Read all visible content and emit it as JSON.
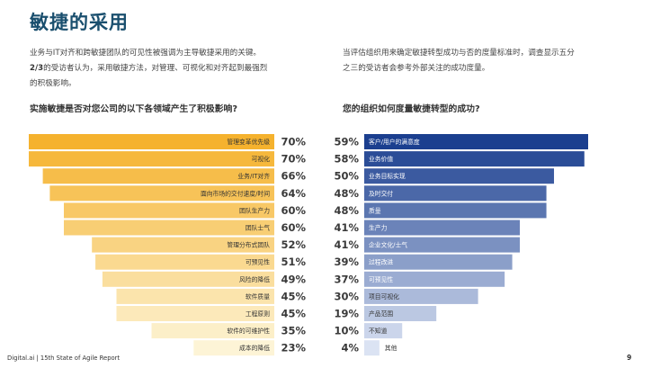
{
  "header": {
    "title": "敏捷的采用"
  },
  "intro": {
    "left_line1": "业务与IT对齐和跨敏捷团队的可见性被强调为主导敏捷采用的关键。",
    "left_highlight": "2/3",
    "left_line2": "的受访者认为，采用敏捷方法，对管理、可视化和对齐起到最强烈",
    "left_line3": "的积极影响。",
    "right_line1": "当评估组织用来确定敏捷转型成功与否的度量标准时，调查显示五分",
    "right_line2": "之三的受访者会参考外部关注的成功度量。"
  },
  "footer": {
    "source": "Digital.ai | 15th State of Agile Report",
    "page": "9"
  },
  "colors": {
    "left_dark": "#f5b22e",
    "left_light": "#fdf4d6",
    "right_dark": "#1b3f8f",
    "right_light": "#dbe3f3"
  },
  "chart_data": [
    {
      "type": "bar",
      "orientation": "horizontal",
      "title": "实施敏捷是否对您公司的以下各领域产生了积极影响?",
      "categories": [
        "管理变革优先级",
        "可视化",
        "业务/IT对齐",
        "面向市场的交付速度/时间",
        "团队生产力",
        "团队士气",
        "管理分布式团队",
        "可预见性",
        "风险的降低",
        "软件质量",
        "工程原则",
        "软件的可维护性",
        "成本的降低"
      ],
      "values": [
        70,
        70,
        66,
        64,
        60,
        60,
        52,
        51,
        49,
        45,
        45,
        35,
        23
      ],
      "value_labels": [
        "70%",
        "70%",
        "66%",
        "64%",
        "60%",
        "60%",
        "52%",
        "51%",
        "49%",
        "45%",
        "45%",
        "35%",
        "23%"
      ],
      "xlim": [
        0,
        70
      ]
    },
    {
      "type": "bar",
      "orientation": "horizontal",
      "title": "您的组织如何度量敏捷转型的成功?",
      "categories": [
        "客户/用户的满意度",
        "业务价值",
        "业务目标实现",
        "及时交付",
        "质量",
        "生产力",
        "企业文化/士气",
        "过程改进",
        "可预见性",
        "项目可视化",
        "产品范围",
        "不知道",
        "其他"
      ],
      "values": [
        59,
        58,
        50,
        48,
        48,
        41,
        41,
        39,
        37,
        30,
        19,
        10,
        4
      ],
      "value_labels": [
        "59%",
        "58%",
        "50%",
        "48%",
        "48%",
        "41%",
        "41%",
        "39%",
        "37%",
        "30%",
        "19%",
        "10%",
        "4%"
      ],
      "xlim": [
        0,
        59
      ]
    }
  ]
}
